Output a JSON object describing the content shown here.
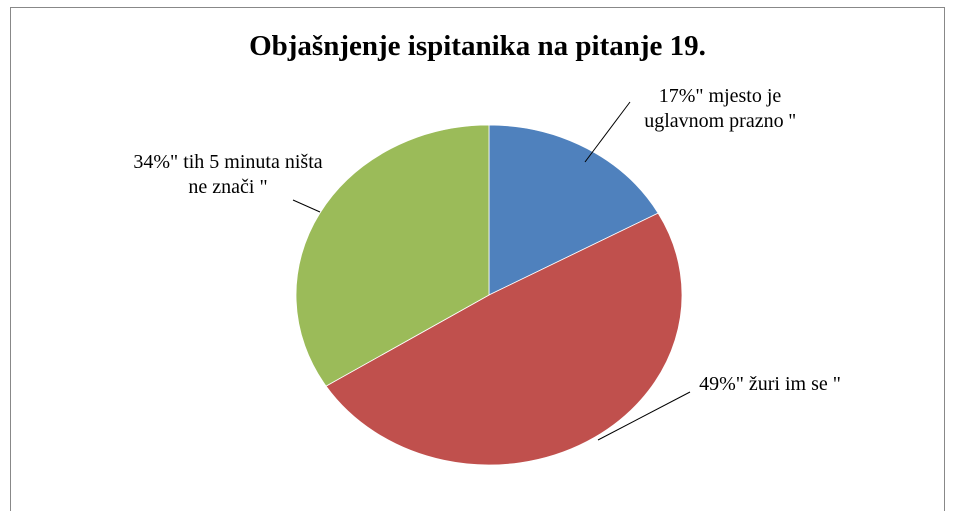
{
  "chart_data": {
    "type": "pie",
    "title": "Objašnjenje ispitanika na pitanje 19.",
    "categories": [
      "\" mjesto je uglavnom prazno ''",
      "\" žuri im se \"",
      "\" tih 5 minuta ništa ne znači \""
    ],
    "values": [
      17,
      49,
      34
    ],
    "value_labels": [
      "17%",
      "49%",
      "34%"
    ],
    "colors": [
      "#4f81bd",
      "#c0504d",
      "#9bbb59"
    ]
  }
}
